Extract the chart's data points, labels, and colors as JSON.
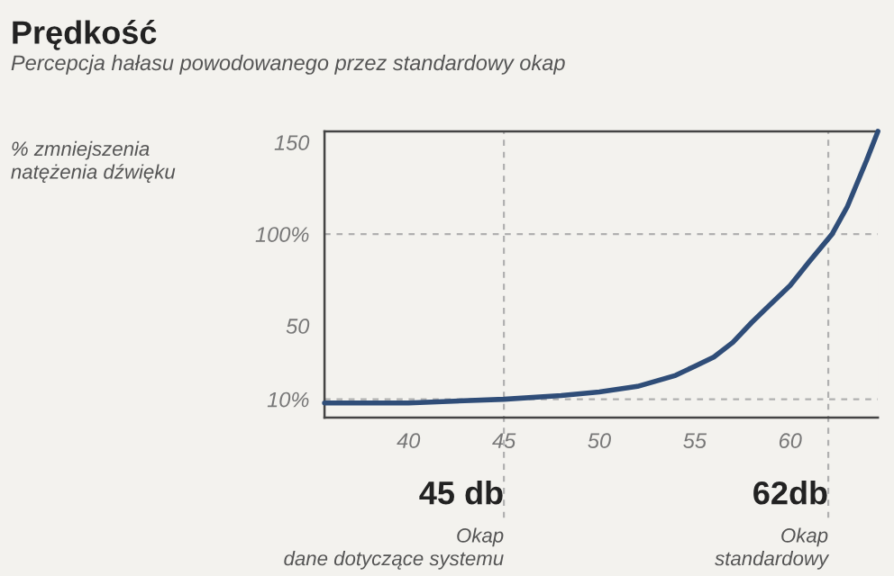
{
  "chart_data": {
    "type": "line",
    "title": "Prędkość",
    "subtitle": "Percepcja hałasu powodowanego przez standardowy okap",
    "ylabel": "% zmniejszenia\nnatężenia dźwięku",
    "x": [
      35.6,
      40,
      45,
      48,
      50,
      52,
      54,
      55,
      56,
      57,
      58,
      59,
      60,
      61,
      62.2,
      63,
      64,
      64.6
    ],
    "series": [
      {
        "color": "#2f4d78",
        "values": [
          8,
          8,
          10,
          12,
          14,
          17,
          23,
          28,
          33,
          41,
          52,
          62,
          72,
          85,
          100,
          115,
          140,
          156
        ]
      }
    ],
    "xlim": [
      35.6,
      64.6
    ],
    "xticks": [
      40,
      45,
      50,
      55,
      60
    ],
    "ylim": [
      0,
      156
    ],
    "yticks": [
      {
        "value": 10,
        "label": "10%"
      },
      50,
      {
        "value": 100,
        "label": "100%"
      },
      150
    ],
    "ref_lines": [
      {
        "axis": "y",
        "value": 10,
        "line_style": "dashed",
        "color": "#b0b0b0"
      },
      {
        "axis": "y",
        "value": 100,
        "line_style": "dashed",
        "color": "#b0b0b0"
      },
      {
        "axis": "x",
        "value": 45,
        "line_style": "dashed",
        "color": "#b0b0b0"
      },
      {
        "axis": "x",
        "value": 62,
        "line_style": "dashed",
        "color": "#b0b0b0"
      }
    ],
    "annotations": [
      "45 db",
      "Okap\ndane dotyczące systemu",
      "62db",
      "Okap\nstandardowy"
    ],
    "grid": false,
    "legend": false,
    "line_style": "solid",
    "marker": "none"
  }
}
